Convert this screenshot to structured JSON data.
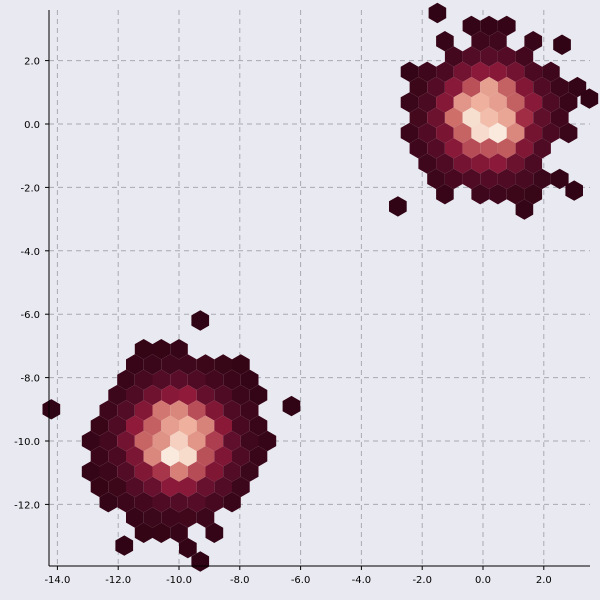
{
  "chart_data": {
    "type": "heatmap",
    "subtype": "hexbin",
    "title": "",
    "xlabel": "",
    "ylabel": "",
    "xlim": [
      -14.2,
      3.5
    ],
    "ylim": [
      -13.8,
      3.6
    ],
    "grid": true,
    "legend": "none",
    "colormap": [
      "#3d0718",
      "#f8e8e0"
    ],
    "x_ticks": [
      -14,
      -12,
      -10,
      -8,
      -6,
      -4,
      -2,
      0,
      2
    ],
    "y_ticks": [
      2,
      0,
      -2,
      -4,
      -6,
      -8,
      -10,
      -12
    ],
    "x_tick_labels": [
      "-14.0",
      "-12.0",
      "-10.0",
      "-8.0",
      "-6.0",
      "-4.0",
      "-2.0",
      "0.0",
      "2.0"
    ],
    "y_tick_labels": [
      "2.0",
      "0.0",
      "-2.0",
      "-4.0",
      "-6.0",
      "-8.0",
      "-10.0",
      "-12.0"
    ],
    "clusters": [
      {
        "center": [
          0.2,
          0.2
        ],
        "spread": 1.1,
        "extent": 3.3,
        "peak_density": 1.0
      },
      {
        "center": [
          -10.0,
          -10.0
        ],
        "spread": 1.1,
        "extent": 3.5,
        "peak_density": 1.0
      }
    ],
    "outlier_cells": [
      [
        -9.3,
        -6.2
      ],
      [
        -9.3,
        -13.8
      ],
      [
        -11.8,
        -13.3
      ],
      [
        -14.2,
        -9.0
      ],
      [
        -6.3,
        -8.9
      ],
      [
        -2.8,
        -2.6
      ],
      [
        3.0,
        -2.1
      ],
      [
        3.5,
        0.8
      ],
      [
        -1.5,
        3.5
      ],
      [
        2.6,
        2.5
      ]
    ]
  }
}
